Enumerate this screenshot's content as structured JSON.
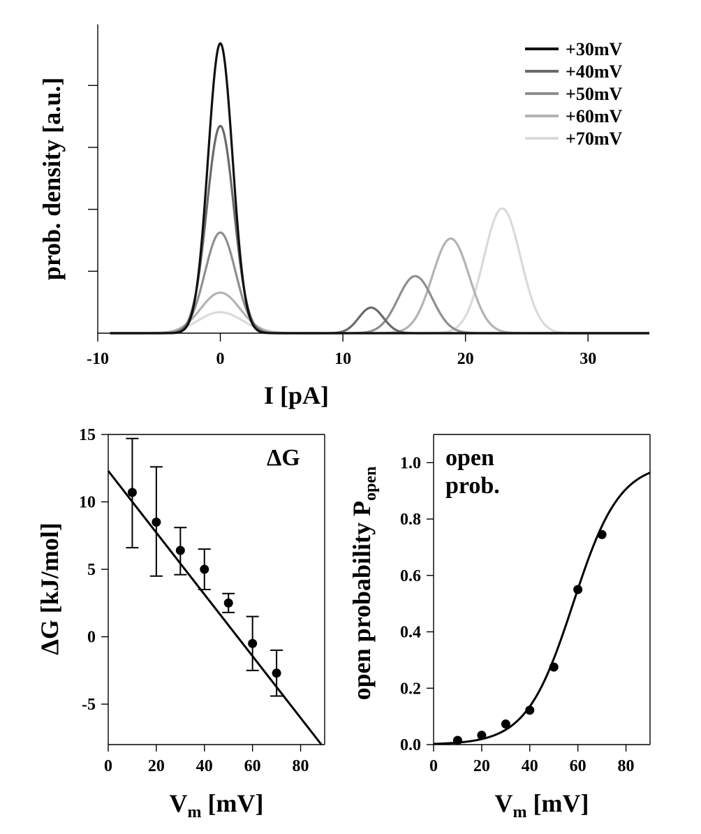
{
  "chart_data": [
    {
      "type": "line",
      "id": "histogram",
      "xlabel": "I [pA]",
      "ylabel": "prob. density [a.u.]",
      "xlim": [
        -10,
        35
      ],
      "ylim": [
        0,
        1.0
      ],
      "xticks": [
        -10,
        0,
        10,
        20,
        30
      ],
      "xtick_labels": [
        "-10",
        "0",
        "10",
        "20",
        "30"
      ],
      "yticks": [
        0.2,
        0.4,
        0.6,
        0.8
      ],
      "grid": false,
      "legend_position": "top-right",
      "series": [
        {
          "name": "+30mV",
          "color": "#111111",
          "peaks": [
            {
              "mu": 0,
              "sigma": 1.0,
              "amp": 0.965
            }
          ]
        },
        {
          "name": "+40mV",
          "color": "#6a6a6a",
          "peaks": [
            {
              "mu": 0,
              "sigma": 1.1,
              "amp": 0.69
            },
            {
              "mu": 12.3,
              "sigma": 1.0,
              "amp": 0.085
            }
          ]
        },
        {
          "name": "+50mV",
          "color": "#8f8f8f",
          "peaks": [
            {
              "mu": 0,
              "sigma": 1.25,
              "amp": 0.335
            },
            {
              "mu": 15.9,
              "sigma": 1.4,
              "amp": 0.19
            }
          ]
        },
        {
          "name": "+60mV",
          "color": "#b3b3b3",
          "peaks": [
            {
              "mu": 0,
              "sigma": 1.6,
              "amp": 0.135
            },
            {
              "mu": 18.8,
              "sigma": 1.5,
              "amp": 0.315
            }
          ]
        },
        {
          "name": "+70mV",
          "color": "#dadada",
          "peaks": [
            {
              "mu": 0,
              "sigma": 1.8,
              "amp": 0.07
            },
            {
              "mu": 23.0,
              "sigma": 1.5,
              "amp": 0.415
            }
          ]
        }
      ]
    },
    {
      "type": "scatter",
      "id": "deltaG",
      "annotation": "ΔG",
      "xlabel_main": "V",
      "xlabel_sub": "m",
      "xlabel_unit": "[mV]",
      "ylabel": "ΔG [kJ/mol]",
      "xlim": [
        0,
        90
      ],
      "ylim": [
        -8,
        15
      ],
      "xticks": [
        0,
        20,
        40,
        60,
        80
      ],
      "yticks": [
        -5,
        0,
        5,
        10,
        15
      ],
      "grid": false,
      "points": [
        {
          "x": 10,
          "y": 10.7,
          "err_low": 6.6,
          "err_high": 14.7
        },
        {
          "x": 20,
          "y": 8.5,
          "err_low": 4.5,
          "err_high": 12.6
        },
        {
          "x": 30,
          "y": 6.4,
          "err_low": 4.6,
          "err_high": 8.1
        },
        {
          "x": 40,
          "y": 5.0,
          "err_low": 3.5,
          "err_high": 6.5
        },
        {
          "x": 50,
          "y": 2.5,
          "err_low": 1.8,
          "err_high": 3.2
        },
        {
          "x": 60,
          "y": -0.5,
          "err_low": -2.5,
          "err_high": 1.5
        },
        {
          "x": 70,
          "y": -2.7,
          "err_low": -4.4,
          "err_high": -1.0
        }
      ],
      "fit": {
        "intercept": 12.3,
        "slope": -0.229,
        "x_range": [
          0,
          88.7
        ]
      }
    },
    {
      "type": "scatter",
      "id": "popen",
      "annotation_line1": "open",
      "annotation_line2": "prob.",
      "xlabel_main": "V",
      "xlabel_sub": "m",
      "xlabel_unit": "[mV]",
      "ylabel_main": "open probability P",
      "ylabel_sub": "open",
      "xlim": [
        0,
        90
      ],
      "ylim": [
        0,
        1.1
      ],
      "xticks": [
        0,
        20,
        40,
        60,
        80
      ],
      "yticks": [
        0.0,
        0.2,
        0.4,
        0.6,
        0.8,
        1.0
      ],
      "ytick_labels": [
        "0.0",
        "0.2",
        "0.4",
        "0.6",
        "0.8",
        "1.0"
      ],
      "grid": false,
      "points": [
        {
          "x": 10,
          "y": 0.015
        },
        {
          "x": 20,
          "y": 0.033
        },
        {
          "x": 30,
          "y": 0.073
        },
        {
          "x": 40,
          "y": 0.122
        },
        {
          "x": 50,
          "y": 0.275
        },
        {
          "x": 60,
          "y": 0.55
        },
        {
          "x": 70,
          "y": 0.745
        }
      ],
      "fit": {
        "type": "boltzmann",
        "v_half": 58.0,
        "slope": 9.7,
        "x_range": [
          0,
          90
        ]
      }
    }
  ]
}
